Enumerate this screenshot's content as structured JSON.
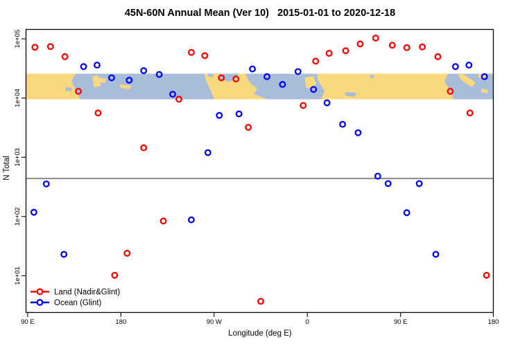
{
  "title": "45N-60N Annual Mean (Ver 10)   2015-01-01 to 2020-12-18",
  "colors": {
    "background": "#ffffff",
    "map_land": "#FAD97E",
    "map_ocean": "#A9BDDB",
    "land_series": "#FF0000",
    "ocean_series": "#0000FF",
    "reference_line": "#8a8a8a",
    "frame": "#000000"
  },
  "chart_data": {
    "type": "scatter",
    "title": "45N-60N Annual Mean (Ver 10)   2015-01-01 to 2020-12-18",
    "xlabel": "Longitude (deg E)",
    "ylabel": "N Total",
    "x_axis": {
      "note": "axis spans 450 degrees eastward from 90E; data repeats after 360",
      "ticks": [
        90,
        180,
        270,
        360,
        450,
        540
      ],
      "tick_labels": [
        "90 E",
        "180",
        "90 W",
        "0",
        "90 E",
        "180"
      ],
      "range": [
        88,
        540
      ]
    },
    "y_axis": {
      "scale": "log10",
      "ticks": [
        10,
        100,
        1000,
        10000,
        100000
      ],
      "tick_labels": [
        "1e+01",
        "1e+02",
        "1e+03",
        "1e+04",
        "1e+05"
      ],
      "range": [
        2.3,
        150000
      ]
    },
    "grid": false,
    "reference_line": {
      "value": 440
    },
    "map_band": {
      "description": "45N-60N land/ocean map strip drawn across the 1e+04 level",
      "value_range_approx": [
        9600,
        26000
      ]
    },
    "legend": {
      "position": "bottom-left"
    },
    "series": [
      {
        "name": "Land (Nadir&Glint)",
        "color": "#FF0000",
        "points": [
          [
            97,
            72000
          ],
          [
            112,
            74000
          ],
          [
            126,
            50000
          ],
          [
            139,
            13000
          ],
          [
            158,
            5600
          ],
          [
            174,
            10.2
          ],
          [
            186,
            24
          ],
          [
            202,
            1450
          ],
          [
            221,
            84
          ],
          [
            236,
            9600
          ],
          [
            248,
            59000
          ],
          [
            261,
            52000
          ],
          [
            277,
            22000
          ],
          [
            291,
            21000
          ],
          [
            303,
            3200
          ],
          [
            315,
            3.7
          ],
          [
            356,
            7500
          ],
          [
            368,
            42000
          ],
          [
            381,
            57000
          ],
          [
            397,
            63000
          ],
          [
            411,
            82000
          ],
          [
            426,
            103000
          ],
          [
            442,
            78000
          ],
          [
            456,
            71000
          ],
          [
            471,
            73000
          ],
          [
            486,
            50000
          ],
          [
            498,
            13000
          ],
          [
            517,
            5600
          ],
          [
            533,
            10.2
          ]
        ]
      },
      {
        "name": "Ocean (Glint)",
        "color": "#0000FF",
        "points": [
          [
            96,
            118
          ],
          [
            108,
            355
          ],
          [
            125,
            23
          ],
          [
            144,
            34000
          ],
          [
            157,
            36000
          ],
          [
            171,
            22000
          ],
          [
            188,
            20000
          ],
          [
            202,
            29000
          ],
          [
            217,
            25000
          ],
          [
            230,
            11600
          ],
          [
            248,
            88
          ],
          [
            264,
            1200
          ],
          [
            275,
            5100
          ],
          [
            294,
            5400
          ],
          [
            307,
            31000
          ],
          [
            321,
            23000
          ],
          [
            336,
            17000
          ],
          [
            351,
            28000
          ],
          [
            366,
            14000
          ],
          [
            379,
            8300
          ],
          [
            394,
            3600
          ],
          [
            409,
            2600
          ],
          [
            428,
            480
          ],
          [
            438,
            360
          ],
          [
            456,
            116
          ],
          [
            468,
            360
          ],
          [
            484,
            23
          ],
          [
            503,
            34000
          ],
          [
            516,
            36000
          ],
          [
            531,
            23000
          ]
        ]
      }
    ]
  }
}
